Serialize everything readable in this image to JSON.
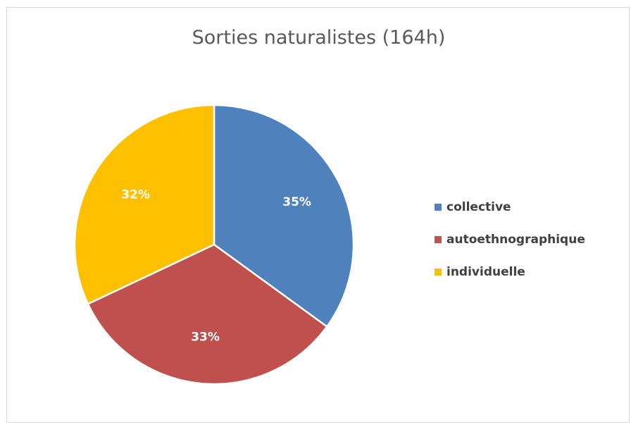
{
  "chart_data": {
    "type": "pie",
    "title": "Sorties naturalistes (164h)",
    "slices": [
      {
        "label": "collective",
        "value": 35,
        "display": "35%",
        "color": "#4f81bd"
      },
      {
        "label": "autoethnographique",
        "value": 33,
        "display": "33%",
        "color": "#c0504d"
      },
      {
        "label": "individuelle",
        "value": 32,
        "display": "32%",
        "color": "#ffc000"
      }
    ],
    "start_angle_deg": 0,
    "direction": "clockwise",
    "data_labels": true,
    "legend_position": "right"
  }
}
